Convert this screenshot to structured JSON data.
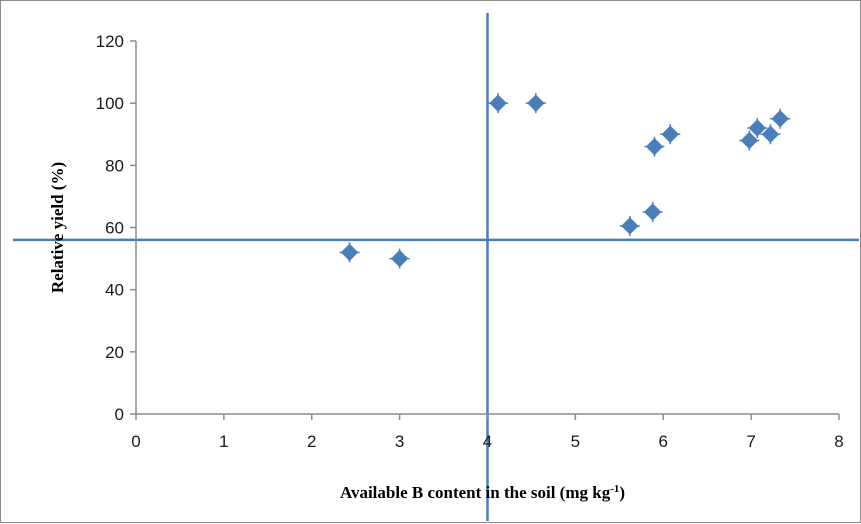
{
  "chart_data": {
    "type": "scatter",
    "xlabel": "Available  B content in the soil (mg  kg",
    "xlabel_sup": "-1",
    "xlabel_close": ")",
    "ylabel": "Relative yield (%)",
    "xlim": [
      0,
      8
    ],
    "ylim": [
      0,
      120
    ],
    "xticks": [
      "0",
      "1",
      "2",
      "3",
      "4",
      "5",
      "6",
      "7",
      "8"
    ],
    "yticks": [
      "0",
      "20",
      "40",
      "60",
      "80",
      "100",
      "120"
    ],
    "grid": false,
    "marker_color": "#4a7ebb",
    "line_color": "#4a7ebb",
    "points": [
      {
        "x": 2.43,
        "y": 52
      },
      {
        "x": 3.0,
        "y": 50
      },
      {
        "x": 4.12,
        "y": 100
      },
      {
        "x": 4.55,
        "y": 100
      },
      {
        "x": 5.62,
        "y": 60.5
      },
      {
        "x": 5.88,
        "y": 65
      },
      {
        "x": 5.9,
        "y": 86
      },
      {
        "x": 6.08,
        "y": 90
      },
      {
        "x": 6.98,
        "y": 88
      },
      {
        "x": 7.07,
        "y": 92
      },
      {
        "x": 7.22,
        "y": 90
      },
      {
        "x": 7.33,
        "y": 95
      }
    ],
    "reference_lines": [
      {
        "orientation": "vertical",
        "x": 4.0
      },
      {
        "orientation": "horizontal",
        "y": 56
      }
    ]
  }
}
